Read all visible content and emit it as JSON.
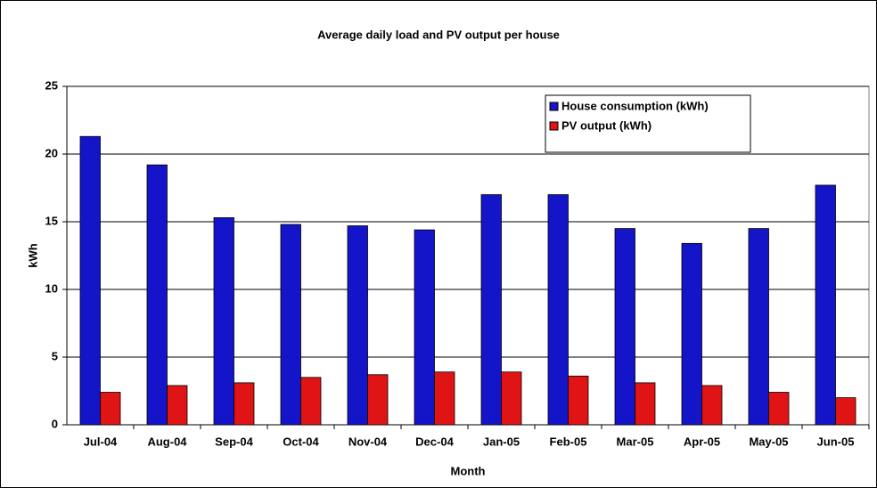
{
  "chart_data": {
    "type": "bar",
    "title": "Average daily load and PV output per house",
    "x_label": "Month",
    "y_label": "kWh",
    "categories": [
      "Jul-04",
      "Aug-04",
      "Sep-04",
      "Oct-04",
      "Nov-04",
      "Dec-04",
      "Jan-05",
      "Feb-05",
      "Mar-05",
      "Apr-05",
      "May-05",
      "Jun-05"
    ],
    "series": [
      {
        "name": "House consumption (kWh)",
        "color": "#1414c8",
        "values": [
          21.3,
          19.2,
          15.3,
          14.8,
          14.7,
          14.4,
          17.0,
          17.0,
          14.5,
          13.4,
          14.5,
          17.7
        ]
      },
      {
        "name": "PV output (kWh)",
        "color": "#e01414",
        "values": [
          2.4,
          2.9,
          3.1,
          3.5,
          3.7,
          3.9,
          3.9,
          3.6,
          3.1,
          2.9,
          2.4,
          2.0
        ]
      }
    ],
    "ylim": [
      0,
      25
    ],
    "yticks": [
      0,
      5,
      10,
      15,
      20,
      25
    ],
    "grid": true,
    "legend": "upper-right"
  }
}
